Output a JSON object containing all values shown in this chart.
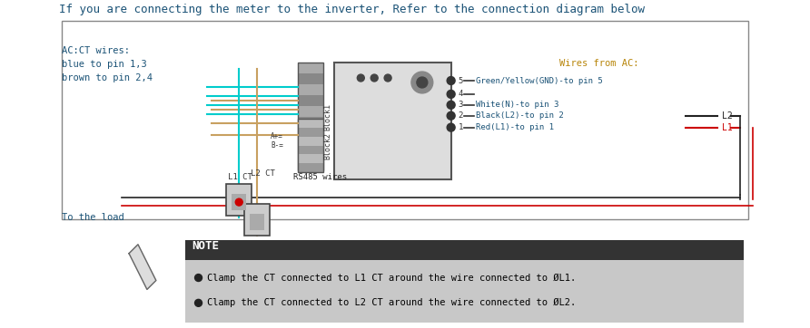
{
  "title": "If you are connecting the meter to the inverter, Refer to the connection diagram below",
  "title_color": "#1a5276",
  "title_fontsize": 9,
  "bg_color": "#ffffff",
  "ac_ct_label": "AC:CT wires:\nblue to pin 1,3\nbrown to pin 2,4",
  "ac_ct_color": "#1a5276",
  "wires_from_ac_label": "Wires from AC:",
  "wires_from_ac_color": "#b8860b",
  "wire_labels": [
    "Green/Yellow(GND)-to pin 5",
    "White(N)-to pin 3",
    "Black(L2)-to pin 2",
    "Red(L1)-to pin 1"
  ],
  "wire_label_color": "#1a5276",
  "wire_colors_left": [
    "#228B22",
    "#ffffff",
    "#222222",
    "#cc0000"
  ],
  "pin_numbers": [
    "5",
    "4",
    "3",
    "2",
    "1"
  ],
  "rs485_label": "RS485 wires",
  "l1_ct_label": "L1 CT",
  "l2_ct_label": "L2 CT",
  "to_load_label": "To the load",
  "note_bg": "#333333",
  "note_title": "NOTE",
  "note_title_color": "#ffffff",
  "note_body_bg": "#cccccc",
  "note_bullets": [
    "Clamp the CT connected to L1 CT around the wire connected to ØL1.",
    "Clamp the CT connected to L2 CT around the wire connected to ØL2."
  ],
  "note_bullet_color": "#000000",
  "l2_label_color": "#222222",
  "l1_label_color": "#cc0000",
  "cyan_wire_color": "#00cccc",
  "brown_wire_color": "#c8a060",
  "red_wire_color": "#cc0000",
  "black_line_color": "#222222"
}
